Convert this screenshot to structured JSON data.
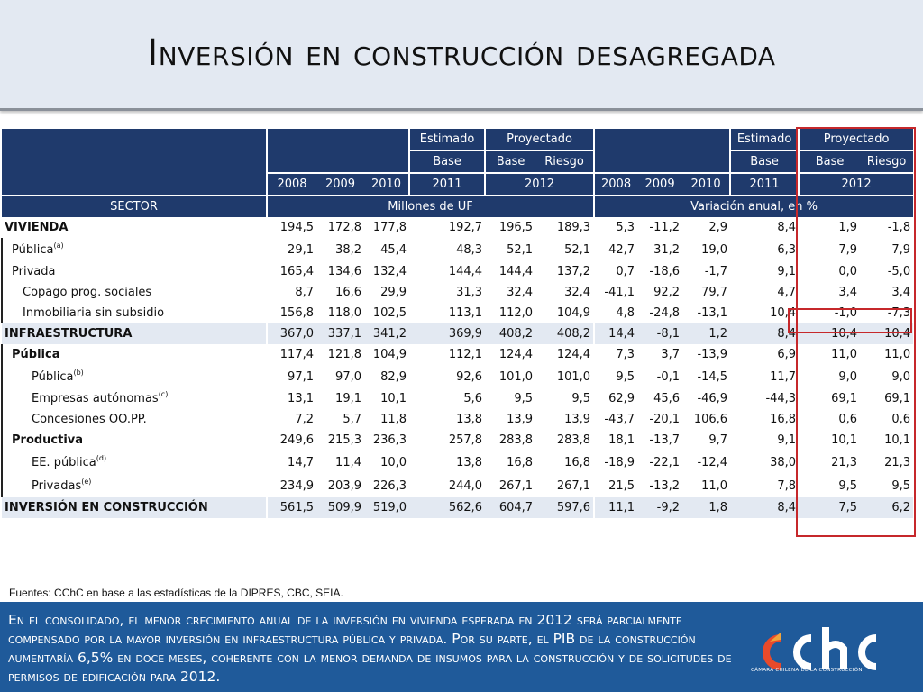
{
  "title": "Inversión en construcción desagregada",
  "header": {
    "estimado": "Estimado",
    "proyectado": "Proyectado",
    "base": "Base",
    "riesgo": "Riesgo",
    "years": [
      "2008",
      "2009",
      "2010",
      "2011",
      "2012"
    ],
    "sector": "SECTOR",
    "millones": "Millones de UF",
    "variacion": "Variación anual, en %"
  },
  "rows": [
    {
      "label": "VIVIENDA",
      "sup": "",
      "v": [
        "194,5",
        "172,8",
        "177,8",
        "192,7",
        "196,5",
        "189,3",
        "5,3",
        "-11,2",
        "2,9",
        "8,4",
        "1,9",
        "-1,8"
      ]
    },
    {
      "label": "Pública",
      "sup": "(a)",
      "v": [
        "29,1",
        "38,2",
        "45,4",
        "48,3",
        "52,1",
        "52,1",
        "42,7",
        "31,2",
        "19,0",
        "6,3",
        "7,9",
        "7,9"
      ]
    },
    {
      "label": "Privada",
      "sup": "",
      "v": [
        "165,4",
        "134,6",
        "132,4",
        "144,4",
        "144,4",
        "137,2",
        "0,7",
        "-18,6",
        "-1,7",
        "9,1",
        "0,0",
        "-5,0"
      ]
    },
    {
      "label": "Copago prog. sociales",
      "sup": "",
      "v": [
        "8,7",
        "16,6",
        "29,9",
        "31,3",
        "32,4",
        "32,4",
        "-41,1",
        "92,2",
        "79,7",
        "4,7",
        "3,4",
        "3,4"
      ]
    },
    {
      "label": "Inmobiliaria sin subsidio",
      "sup": "",
      "v": [
        "156,8",
        "118,0",
        "102,5",
        "113,1",
        "112,0",
        "104,9",
        "4,8",
        "-24,8",
        "-13,1",
        "10,4",
        "-1,0",
        "-7,3"
      ]
    },
    {
      "label": "INFRAESTRUCTURA",
      "sup": "",
      "v": [
        "367,0",
        "337,1",
        "341,2",
        "369,9",
        "408,2",
        "408,2",
        "14,4",
        "-8,1",
        "1,2",
        "8,4",
        "10,4",
        "10,4"
      ]
    },
    {
      "label": "Pública",
      "sup": "",
      "v": [
        "117,4",
        "121,8",
        "104,9",
        "112,1",
        "124,4",
        "124,4",
        "7,3",
        "3,7",
        "-13,9",
        "6,9",
        "11,0",
        "11,0"
      ]
    },
    {
      "label": "Pública",
      "sup": "(b)",
      "v": [
        "97,1",
        "97,0",
        "82,9",
        "92,6",
        "101,0",
        "101,0",
        "9,5",
        "-0,1",
        "-14,5",
        "11,7",
        "9,0",
        "9,0"
      ]
    },
    {
      "label": "Empresas autónomas",
      "sup": "(c)",
      "v": [
        "13,1",
        "19,1",
        "10,1",
        "5,6",
        "9,5",
        "9,5",
        "62,9",
        "45,6",
        "-46,9",
        "-44,3",
        "69,1",
        "69,1"
      ]
    },
    {
      "label": "Concesiones OO.PP.",
      "sup": "",
      "v": [
        "7,2",
        "5,7",
        "11,8",
        "13,8",
        "13,9",
        "13,9",
        "-43,7",
        "-20,1",
        "106,6",
        "16,8",
        "0,6",
        "0,6"
      ]
    },
    {
      "label": "Productiva",
      "sup": "",
      "v": [
        "249,6",
        "215,3",
        "236,3",
        "257,8",
        "283,8",
        "283,8",
        "18,1",
        "-13,7",
        "9,7",
        "9,1",
        "10,1",
        "10,1"
      ]
    },
    {
      "label": "EE. pública",
      "sup": "(d)",
      "v": [
        "14,7",
        "11,4",
        "10,0",
        "13,8",
        "16,8",
        "16,8",
        "-18,9",
        "-22,1",
        "-12,4",
        "38,0",
        "21,3",
        "21,3"
      ]
    },
    {
      "label": "Privadas",
      "sup": "(e)",
      "v": [
        "234,9",
        "203,9",
        "226,3",
        "244,0",
        "267,1",
        "267,1",
        "21,5",
        "-13,2",
        "11,0",
        "7,8",
        "9,5",
        "9,5"
      ]
    },
    {
      "label": "INVERSIÓN EN CONSTRUCCIÓN",
      "sup": "",
      "v": [
        "561,5",
        "509,9",
        "519,0",
        "562,6",
        "604,7",
        "597,6",
        "11,1",
        "-9,2",
        "1,8",
        "8,4",
        "7,5",
        "6,2"
      ]
    }
  ],
  "source": "Fuentes: CChC en base a las estadísticas de la DIPRES, CBC, SEIA.",
  "footer": "En el consolidado, el menor crecimiento anual de la inversión en vivienda esperada en 2012 será parcialmente compensado por la mayor inversión en infraestructura pública y privada. Por su parte, el PIB de la construcción aumentaría 6,5% en doce meses, coherente con la menor demanda de insumos para la construcción y de solicitudes de permisos de edificación para 2012.",
  "logo": {
    "text": "cchc",
    "caption": "CÁMARA CHILENA DE LA CONSTRUCCIÓN"
  },
  "colors": {
    "header_bg": "#1f3a6c",
    "highlight_bg": "#e3e9f2",
    "footer_bg": "#1f5a9a",
    "box_red": "#c6282b"
  }
}
